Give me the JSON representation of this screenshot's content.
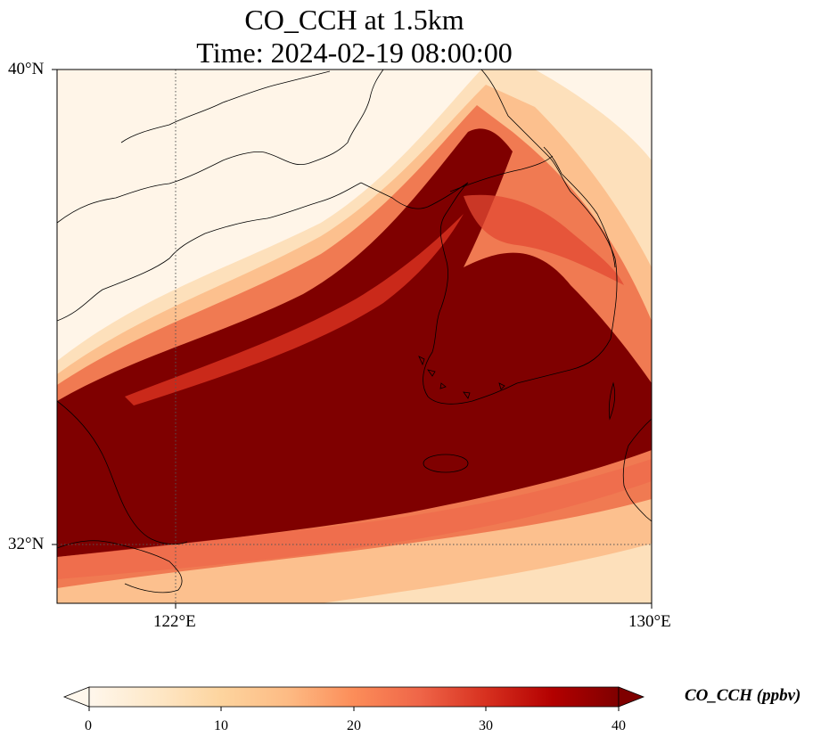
{
  "title": {
    "line1": "CO_CCH at 1.5km",
    "line2": "Time: 2024-02-19 08:00:00"
  },
  "map": {
    "lon_range": [
      120,
      130
    ],
    "lat_range": [
      31,
      40
    ],
    "gridlines": {
      "lons": [
        122
      ],
      "lats": [
        32
      ],
      "style": "dotted"
    },
    "lon_tick_labels": [
      "122°E",
      "130°E"
    ],
    "lat_tick_labels": [
      "40°N",
      "32°N"
    ],
    "variable": "CO_CCH",
    "units": "ppbv",
    "colormap": "OrRd",
    "plume_core_color": "#7f0000",
    "coastline_color": "#000000"
  },
  "colorbar": {
    "label": "CO_CCH (ppbv)",
    "ticks": [
      "0",
      "10",
      "20",
      "30",
      "40"
    ],
    "vmin": 0,
    "vmax": 40,
    "extend": "both",
    "colors": [
      "#fff7ec",
      "#fee8c8",
      "#fdd49e",
      "#fdbb84",
      "#fc8d59",
      "#ef6548",
      "#d7301f",
      "#b30000",
      "#7f0000"
    ]
  }
}
